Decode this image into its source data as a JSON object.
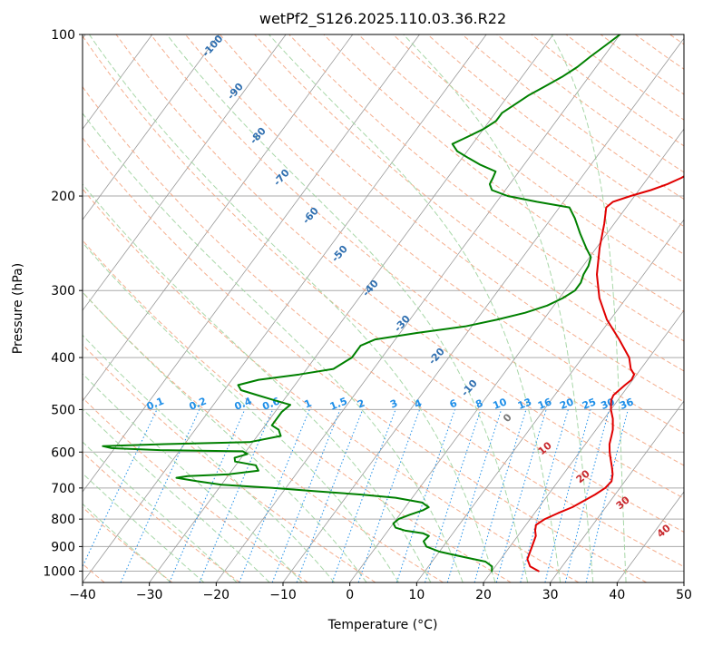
{
  "chart_data": {
    "type": "skew-t",
    "title": "wetPf2_S126.2025.110.03.36.R22",
    "xlabel": "Temperature (°C)",
    "ylabel": "Pressure (hPa)",
    "xlim": [
      -40,
      50
    ],
    "ylim": [
      1050,
      100
    ],
    "y_scale": "log",
    "grid": true,
    "x_ticks": [
      "−40",
      "−30",
      "−20",
      "−10",
      "0",
      "10",
      "20",
      "30",
      "40",
      "50"
    ],
    "y_ticks": [
      "100",
      "200",
      "300",
      "400",
      "500",
      "600",
      "700",
      "800",
      "900",
      "1000"
    ],
    "colors": {
      "temperature": "#e00000",
      "dewpoint": "#008000",
      "dry_adiabat": "#f4a582",
      "moist_adiabat": "#9fd39f",
      "mixing_ratio": "#1f8fe8",
      "isotherm": "#999999",
      "moist_label": "#2f6fb0",
      "dry_label": "#c8282d"
    },
    "series": [
      {
        "key": "temperature",
        "points": [
          [
            27.0,
            1000
          ],
          [
            25.2,
            980
          ],
          [
            24.0,
            950
          ],
          [
            23.3,
            900
          ],
          [
            22.7,
            860
          ],
          [
            22.0,
            840
          ],
          [
            21.5,
            820
          ],
          [
            22.2,
            800
          ],
          [
            23.5,
            780
          ],
          [
            25.0,
            760
          ],
          [
            26.0,
            740
          ],
          [
            27.0,
            720
          ],
          [
            27.8,
            700
          ],
          [
            28.0,
            680
          ],
          [
            27.4,
            660
          ],
          [
            26.5,
            640
          ],
          [
            25.5,
            620
          ],
          [
            24.5,
            600
          ],
          [
            23.6,
            580
          ],
          [
            23.0,
            560
          ],
          [
            22.5,
            545
          ],
          [
            21.3,
            520
          ],
          [
            20.0,
            500
          ],
          [
            19.0,
            480
          ],
          [
            18.8,
            470
          ],
          [
            19.4,
            450
          ],
          [
            19.8,
            440
          ],
          [
            19.6,
            430
          ],
          [
            18.5,
            420
          ],
          [
            17.0,
            400
          ],
          [
            13.5,
            370
          ],
          [
            9.5,
            340
          ],
          [
            6.0,
            310
          ],
          [
            3.0,
            280
          ],
          [
            0.5,
            250
          ],
          [
            -1.5,
            225
          ],
          [
            -3.0,
            210
          ],
          [
            -2.6,
            205
          ],
          [
            -0.6,
            200
          ],
          [
            1.8,
            195
          ],
          [
            3.6,
            190
          ],
          [
            5.0,
            185
          ],
          [
            6.0,
            180
          ],
          [
            7.0,
            175
          ],
          [
            8.4,
            170
          ],
          [
            10.0,
            165
          ],
          [
            11.5,
            160
          ],
          [
            12.0,
            155
          ],
          [
            11.8,
            150
          ],
          [
            11.0,
            145
          ],
          [
            9.8,
            140
          ],
          [
            8.6,
            135
          ],
          [
            7.6,
            130
          ],
          [
            6.5,
            125
          ],
          [
            5.0,
            120
          ],
          [
            3.5,
            115
          ],
          [
            1.8,
            110
          ],
          [
            0.0,
            105
          ],
          [
            -1.5,
            100
          ]
        ]
      },
      {
        "key": "dewpoint",
        "points": [
          [
            20.0,
            1000
          ],
          [
            19.5,
            980
          ],
          [
            18.0,
            960
          ],
          [
            14.0,
            940
          ],
          [
            10.0,
            920
          ],
          [
            7.5,
            900
          ],
          [
            6.5,
            880
          ],
          [
            6.7,
            860
          ],
          [
            5.5,
            850
          ],
          [
            2.5,
            840
          ],
          [
            0.8,
            830
          ],
          [
            0.0,
            815
          ],
          [
            0.3,
            800
          ],
          [
            1.5,
            785
          ],
          [
            3.0,
            770
          ],
          [
            3.5,
            760
          ],
          [
            2.0,
            745
          ],
          [
            -2.5,
            730
          ],
          [
            -8.0,
            720
          ],
          [
            -15.0,
            710
          ],
          [
            -22.0,
            700
          ],
          [
            -30.0,
            690
          ],
          [
            -34.0,
            680
          ],
          [
            -37.5,
            670
          ],
          [
            -36.0,
            665
          ],
          [
            -30.0,
            660
          ],
          [
            -26.0,
            650
          ],
          [
            -27.0,
            635
          ],
          [
            -30.5,
            625
          ],
          [
            -31.0,
            615
          ],
          [
            -29.5,
            605
          ],
          [
            -30.5,
            598
          ],
          [
            -43.0,
            595
          ],
          [
            -50.5,
            590
          ],
          [
            -52.0,
            585
          ],
          [
            -43.0,
            580
          ],
          [
            -30.5,
            575
          ],
          [
            -26.5,
            560
          ],
          [
            -27.5,
            545
          ],
          [
            -29.0,
            535
          ],
          [
            -29.0,
            505
          ],
          [
            -28.5,
            490
          ],
          [
            -31.5,
            480
          ],
          [
            -34.5,
            470
          ],
          [
            -37.5,
            460
          ],
          [
            -38.5,
            450
          ],
          [
            -36.0,
            440
          ],
          [
            -30.5,
            430
          ],
          [
            -26.0,
            420
          ],
          [
            -24.5,
            400
          ],
          [
            -24.5,
            380
          ],
          [
            -23.0,
            370
          ],
          [
            -17.5,
            360
          ],
          [
            -11.0,
            350
          ],
          [
            -7.0,
            340
          ],
          [
            -3.5,
            330
          ],
          [
            -1.0,
            320
          ],
          [
            0.5,
            310
          ],
          [
            1.5,
            300
          ],
          [
            1.5,
            290
          ],
          [
            1.0,
            280
          ],
          [
            0.8,
            270
          ],
          [
            0.2,
            260
          ],
          [
            -1.5,
            250
          ],
          [
            -4.0,
            235
          ],
          [
            -6.5,
            220
          ],
          [
            -8.5,
            210
          ],
          [
            -14.0,
            205
          ],
          [
            -19.0,
            200
          ],
          [
            -22.0,
            195
          ],
          [
            -23.0,
            190
          ],
          [
            -23.2,
            185
          ],
          [
            -23.5,
            180
          ],
          [
            -26.5,
            175
          ],
          [
            -29.0,
            170
          ],
          [
            -31.5,
            165
          ],
          [
            -33.0,
            160
          ],
          [
            -31.5,
            155
          ],
          [
            -30.0,
            150
          ],
          [
            -29.0,
            145
          ],
          [
            -29.0,
            140
          ],
          [
            -28.0,
            135
          ],
          [
            -27.0,
            130
          ],
          [
            -25.5,
            125
          ],
          [
            -24.0,
            120
          ],
          [
            -22.8,
            115
          ],
          [
            -22.0,
            110
          ],
          [
            -21.0,
            105
          ],
          [
            -20.0,
            100
          ]
        ]
      }
    ],
    "mixing_ratio_labels": [
      "0.1",
      "0.2",
      "0.4",
      "0.6",
      "1",
      "1.5",
      "2",
      "3",
      "4",
      "6",
      "8",
      "10",
      "13",
      "16",
      "20",
      "25",
      "30",
      "36"
    ],
    "moist_adiabat_labels": [
      "-100",
      "-90",
      "-80",
      "-70",
      "-60",
      "-50",
      "-40",
      "-30",
      "-20",
      "-10",
      "0"
    ],
    "dry_adiabat_labels": [
      "10",
      "20",
      "30",
      "40"
    ]
  }
}
